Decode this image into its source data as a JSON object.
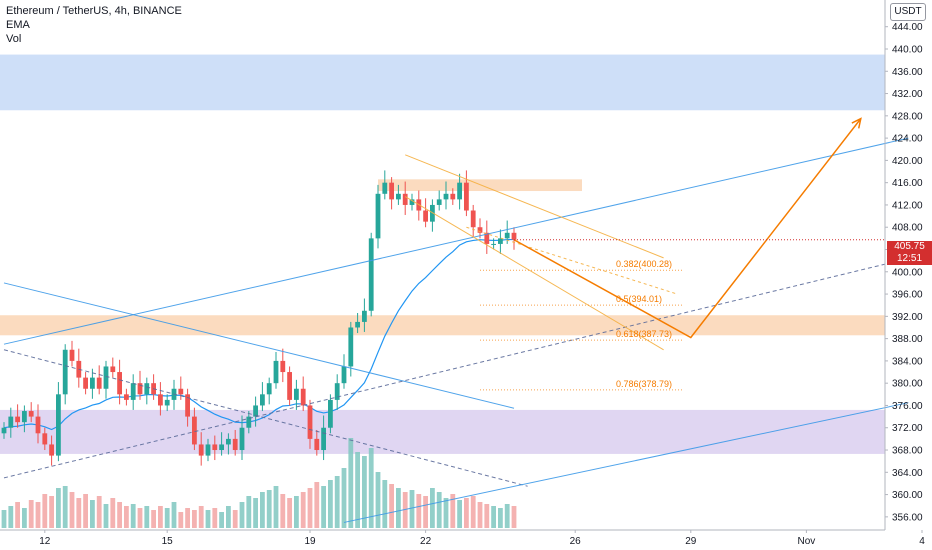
{
  "legend": {
    "symbol_line": "Ethereum / TetherUS, 4h, BINANCE",
    "indicator_ema": "EMA",
    "indicator_vol": "Vol"
  },
  "currency_button": "USDT",
  "last_price": {
    "price": "405.75",
    "countdown": "12:51",
    "value": 405.75
  },
  "colors": {
    "up_candle": "#26a69a",
    "down_candle": "#ef5350",
    "up_volume": "#7fc7c0",
    "down_volume": "#f2a5a3",
    "ema": "#2196f3",
    "trendline": "#3d9ae8",
    "fib": "#f57c00",
    "supply_zone": "#f9cfa9",
    "resistance_zone": "#c9dcf7",
    "support_zone": "#d6c8ee",
    "price_tag": "#d32f2f"
  },
  "chart_data": {
    "type": "candlestick",
    "x_axis": {
      "tick_labels": [
        "12",
        "15",
        "19",
        "22",
        "26",
        "29",
        "Nov",
        "4"
      ],
      "tick_bar_index": [
        6,
        24,
        45,
        62,
        84,
        101,
        118,
        135
      ]
    },
    "y_axis": {
      "range": [
        354,
        447
      ],
      "tick_values": [
        356,
        360,
        364,
        368,
        372,
        376,
        380,
        384,
        388,
        392,
        396,
        400,
        404,
        408,
        412,
        416,
        420,
        424,
        428,
        432,
        436,
        440,
        444
      ],
      "tick_labels": [
        "356.00",
        "360.00",
        "364.00",
        "368.00",
        "372.00",
        "376.00",
        "380.00",
        "384.00",
        "388.00",
        "392.00",
        "396.00",
        "400.00",
        "404.00",
        "408.00",
        "412.00",
        "416.00",
        "420.00",
        "424.00",
        "428.00",
        "432.00",
        "436.00",
        "440.00",
        "444.00"
      ]
    },
    "close": [
      372,
      374,
      373,
      375,
      374,
      371,
      369,
      367,
      378,
      386,
      384,
      381,
      379,
      381,
      379,
      383,
      382,
      378,
      377,
      380,
      378,
      380,
      378,
      376,
      377,
      379,
      378,
      374,
      369,
      367,
      369,
      368,
      369,
      370,
      368,
      372,
      374,
      376,
      378,
      380,
      384,
      382,
      377,
      379,
      376,
      370,
      368,
      372,
      377,
      380,
      383,
      390,
      391,
      393,
      406,
      414,
      416,
      413,
      414,
      412,
      413,
      411,
      409,
      412,
      413,
      414,
      413,
      416,
      411,
      408,
      407,
      405,
      405,
      406,
      407,
      405.75
    ],
    "volume": [
      9,
      11,
      13,
      10,
      14,
      13,
      17,
      16,
      20,
      21,
      18,
      15,
      17,
      14,
      16,
      12,
      15,
      13,
      11,
      12,
      10,
      11,
      9,
      11,
      10,
      13,
      8,
      10,
      9,
      11,
      9,
      10,
      8,
      11,
      9,
      13,
      16,
      15,
      18,
      19,
      21,
      17,
      15,
      16,
      18,
      20,
      23,
      21,
      24,
      26,
      30,
      45,
      38,
      36,
      40,
      28,
      24,
      22,
      20,
      18,
      19,
      17,
      16,
      20,
      18,
      15,
      17,
      14,
      15,
      16,
      13,
      12,
      11,
      10,
      12,
      11
    ],
    "series": [
      {
        "name": "EMA",
        "type": "line",
        "period": null
      }
    ],
    "zones": [
      {
        "name": "resistance",
        "from": 429,
        "to": 439
      },
      {
        "name": "supply",
        "from": 414.5,
        "to": 416.6
      },
      {
        "name": "demand",
        "from": 388.6,
        "to": 392.2
      },
      {
        "name": "support",
        "from": 367.3,
        "to": 375.2
      }
    ],
    "fib_levels": [
      {
        "ratio": 0.382,
        "price": 400.28,
        "label": "0.382(400.28)"
      },
      {
        "ratio": 0.5,
        "price": 394.01,
        "label": "0.5(394.01)"
      },
      {
        "ratio": 0.618,
        "price": 387.73,
        "label": "0.618(387.73)"
      },
      {
        "ratio": 0.786,
        "price": 378.79,
        "label": "0.786(378.79)"
      }
    ],
    "projection_path": [
      {
        "bar": 75,
        "price": 405.75
      },
      {
        "bar": 101,
        "price": 388.2
      },
      {
        "bar": 126,
        "price": 427.5
      }
    ],
    "grid": false,
    "legend_position": "top-left"
  }
}
